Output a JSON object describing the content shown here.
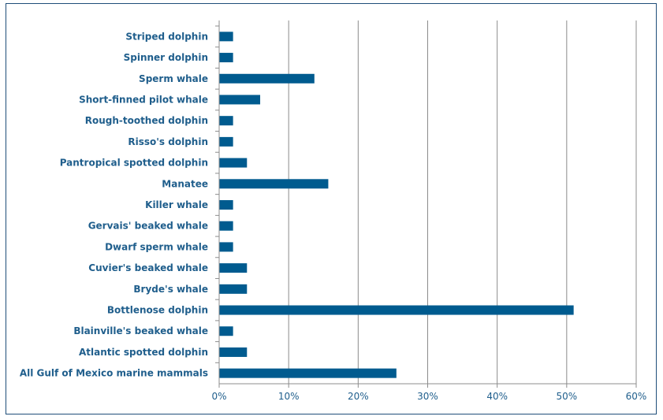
{
  "chart_data": {
    "type": "bar",
    "orientation": "horizontal",
    "categories": [
      "Striped dolphin",
      "Spinner dolphin",
      "Sperm whale",
      "Short-finned pilot whale",
      "Rough-toothed dolphin",
      "Risso's dolphin",
      "Pantropical spotted dolphin",
      "Manatee",
      "Killer whale",
      "Gervais' beaked whale",
      "Dwarf sperm whale",
      "Cuvier's beaked whale",
      "Bryde's whale",
      "Bottlenose dolphin",
      "Blainville's beaked whale",
      "Atlantic spotted dolphin",
      "All Gulf of Mexico marine mammals"
    ],
    "values": [
      2,
      2,
      13.7,
      5.9,
      2,
      2,
      4,
      15.7,
      2,
      2,
      2,
      4,
      4,
      51,
      2,
      4,
      25.5
    ],
    "xlim": [
      0,
      60
    ],
    "xticks": [
      0,
      10,
      20,
      30,
      40,
      50,
      60
    ],
    "xtick_labels": [
      "0%",
      "10%",
      "20%",
      "30%",
      "40%",
      "50%",
      "60%"
    ],
    "title": "",
    "xlabel": "",
    "ylabel": "",
    "grid": "vertical",
    "colors": {
      "bar": "#005b8f",
      "grid": "#8c8c8c",
      "axis": "#8c8c8c",
      "text": "#1f5e8c"
    }
  }
}
